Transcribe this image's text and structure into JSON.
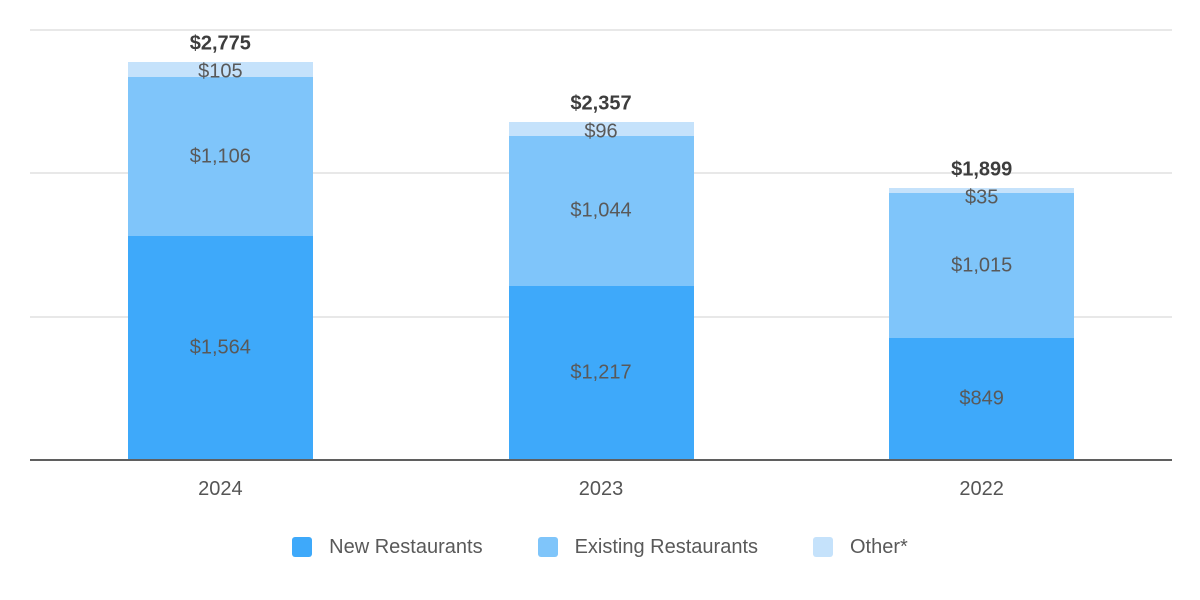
{
  "chart_data": {
    "type": "bar",
    "stacked": true,
    "title": "",
    "xlabel": "",
    "ylabel": "",
    "categories": [
      "2024",
      "2023",
      "2022"
    ],
    "series": [
      {
        "name": "New Restaurants",
        "color": "#3EA9FA",
        "values": [
          1564,
          1217,
          849
        ],
        "labels": [
          "$1,564",
          "$1,217",
          "$849"
        ]
      },
      {
        "name": "Existing Restaurants",
        "color": "#7FC5FA",
        "values": [
          1106,
          1044,
          1015
        ],
        "labels": [
          "$1,106",
          "$1,044",
          "$1,015"
        ]
      },
      {
        "name": "Other*",
        "color": "#C5E2FB",
        "values": [
          105,
          96,
          35
        ],
        "labels": [
          "$105",
          "$96",
          "$35"
        ]
      }
    ],
    "totals": [
      2775,
      2357,
      1899
    ],
    "total_labels": [
      "$2,775",
      "$2,357",
      "$1,899"
    ],
    "ylim": [
      0,
      3000
    ],
    "gridline_interval": 1000,
    "grid": true,
    "y_axis_labels_visible": false,
    "legend_position": "bottom"
  },
  "theme": {
    "background": "#ffffff",
    "grid_color": "#e8e8e8",
    "axis_color": "#5f5f5f",
    "value_label_color": "#595959",
    "total_label_color": "#3d3d3d",
    "tick_label_color": "#555555",
    "legend_text_color": "#595959"
  }
}
